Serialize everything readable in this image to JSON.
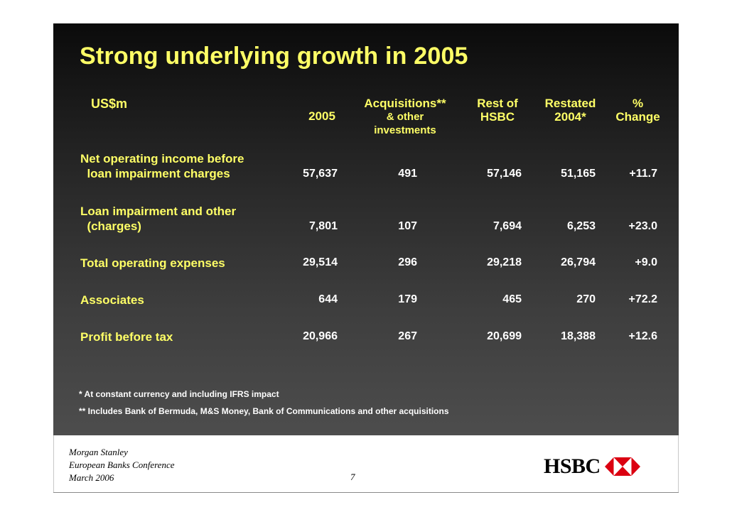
{
  "title": "Strong underlying growth in 2005",
  "unit_label": "US$m",
  "columns": [
    {
      "lines": [
        "2005"
      ]
    },
    {
      "lines": [
        "Acquisitions**",
        "& other",
        "investments"
      ]
    },
    {
      "lines": [
        "Rest of",
        "HSBC"
      ]
    },
    {
      "lines": [
        "Restated",
        "2004*"
      ]
    },
    {
      "lines": [
        "%",
        "Change"
      ]
    }
  ],
  "rows": [
    {
      "label": "Net operating income before\n  loan impairment charges",
      "values": [
        "57,637",
        "491",
        "57,146",
        "51,165",
        "+11.7"
      ]
    },
    {
      "label": "Loan impairment and other\n  (charges)",
      "values": [
        "7,801",
        "107",
        "7,694",
        "6,253",
        "+23.0"
      ]
    },
    {
      "label": "Total operating expenses",
      "values": [
        "29,514",
        "296",
        "29,218",
        "26,794",
        "+9.0"
      ]
    },
    {
      "label": "Associates",
      "values": [
        "644",
        "179",
        "465",
        "270",
        "+72.2"
      ]
    },
    {
      "label": "Profit before tax",
      "values": [
        "20,966",
        "267",
        "20,699",
        "18,388",
        "+12.6"
      ]
    }
  ],
  "notes": [
    "*  At constant currency and including IFRS impact",
    "** Includes Bank of Bermuda, M&S Money, Bank of Communications and other acquisitions"
  ],
  "footer": {
    "line1": "Morgan Stanley",
    "line2": "European Banks Conference",
    "line3": "March 2006",
    "page_number": "7"
  },
  "logo": {
    "text": "HSBC",
    "icon": "hsbc-hexagon-icon",
    "color": "#db0011"
  },
  "colors": {
    "accent_yellow": "#ffff66",
    "value_white": "#ffffff"
  }
}
